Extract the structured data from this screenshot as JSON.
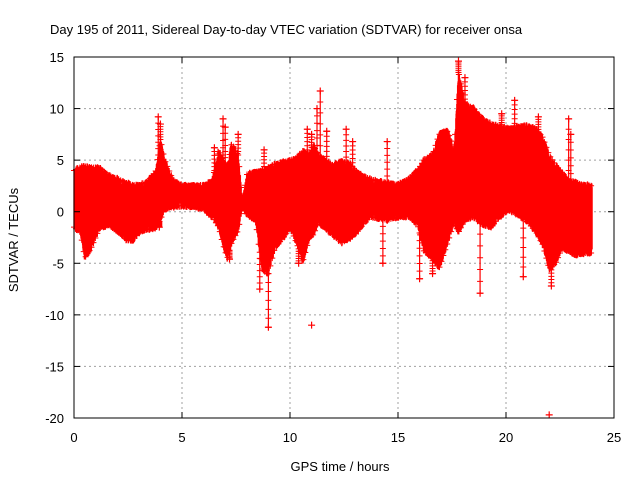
{
  "chart_data": {
    "type": "scatter",
    "title": "Day 195 of 2011, Sidereal Day-to-day VTEC variation (SDTVAR) for receiver onsa",
    "xlabel": "GPS time / hours",
    "ylabel": "SDTVAR / TECUs",
    "xlim": [
      0,
      25
    ],
    "ylim": [
      -20,
      15
    ],
    "xticks": [
      0,
      5,
      10,
      15,
      20,
      25
    ],
    "yticks": [
      -20,
      -15,
      -10,
      -5,
      0,
      5,
      10,
      15
    ],
    "xtick_labels": [
      "0",
      "5",
      "10",
      "15",
      "20",
      "25"
    ],
    "ytick_labels": [
      "-20",
      "-15",
      "-10",
      "-5",
      "0",
      "5",
      "10",
      "15"
    ],
    "grid": true,
    "marker": "+",
    "color": "#ff0000",
    "series": [
      {
        "name": "SDTVAR",
        "envelope": {
          "x": [
            0.0,
            0.3,
            0.5,
            0.8,
            1.2,
            1.6,
            2.0,
            2.4,
            2.7,
            3.0,
            3.4,
            3.8,
            4.0,
            4.2,
            4.6,
            5.0,
            5.5,
            6.0,
            6.4,
            6.7,
            6.9,
            7.1,
            7.3,
            7.6,
            7.8,
            8.0,
            8.4,
            8.7,
            9.0,
            9.3,
            9.7,
            10.0,
            10.3,
            10.6,
            10.9,
            11.1,
            11.3,
            11.6,
            12.0,
            12.4,
            12.8,
            13.1,
            13.4,
            13.7,
            14.1,
            14.5,
            15.0,
            15.5,
            15.9,
            16.2,
            16.6,
            16.9,
            17.3,
            17.6,
            17.8,
            18.1,
            18.5,
            18.9,
            19.3,
            19.7,
            20.1,
            20.6,
            21.0,
            21.4,
            21.7,
            22.0,
            22.3,
            22.6,
            22.9,
            23.2,
            23.6,
            24.0
          ],
          "upper": [
            4.0,
            4.3,
            4.4,
            4.3,
            4.2,
            3.5,
            3.2,
            2.8,
            2.6,
            2.5,
            2.9,
            4.0,
            7.0,
            5.0,
            3.0,
            2.5,
            2.5,
            2.5,
            3.0,
            6.0,
            4.8,
            4.5,
            6.6,
            5.5,
            1.0,
            3.6,
            3.8,
            4.0,
            4.2,
            4.6,
            4.8,
            5.0,
            5.2,
            5.8,
            5.5,
            6.4,
            5.5,
            5.0,
            4.5,
            4.9,
            4.6,
            3.8,
            3.4,
            3.2,
            2.9,
            2.8,
            2.6,
            3.2,
            4.0,
            5.0,
            5.5,
            7.5,
            7.8,
            6.0,
            13.5,
            10.5,
            10.0,
            9.0,
            8.5,
            8.3,
            8.0,
            8.2,
            8.3,
            8.0,
            7.2,
            5.5,
            4.5,
            3.8,
            3.0,
            2.8,
            2.6,
            2.5
          ],
          "lower": [
            -1.5,
            -2.0,
            -4.5,
            -3.5,
            -1.5,
            -1.3,
            -1.8,
            -2.7,
            -2.8,
            -2.0,
            -1.7,
            -1.5,
            -0.8,
            0.3,
            0.5,
            0.6,
            0.5,
            0.3,
            -0.5,
            -1.5,
            -3.2,
            -4.5,
            -3.0,
            -1.8,
            0.5,
            -0.2,
            -0.8,
            -5.5,
            -6.0,
            -3.5,
            -2.5,
            -1.5,
            -3.0,
            -4.8,
            -2.5,
            -2.2,
            -1.0,
            -1.5,
            -2.3,
            -3.0,
            -2.5,
            -2.0,
            -1.2,
            -0.5,
            -0.6,
            -0.8,
            -0.5,
            -0.5,
            -1.2,
            -3.8,
            -4.5,
            -5.5,
            -3.0,
            -1.0,
            -2.0,
            -0.8,
            -0.5,
            -1.2,
            -1.5,
            -0.5,
            0.2,
            -0.3,
            -1.0,
            -2.0,
            -3.2,
            -5.5,
            -5.0,
            -3.5,
            -3.8,
            -4.2,
            -4.0,
            -4.0
          ]
        },
        "spikes": [
          {
            "x": 3.9,
            "y": 9.2
          },
          {
            "x": 4.0,
            "y": 8.5
          },
          {
            "x": 3.95,
            "y": -1.5
          },
          {
            "x": 6.5,
            "y": 6.2
          },
          {
            "x": 6.9,
            "y": 9.0
          },
          {
            "x": 7.0,
            "y": 8.2
          },
          {
            "x": 7.2,
            "y": -4.6
          },
          {
            "x": 7.6,
            "y": 7.5
          },
          {
            "x": 8.6,
            "y": -7.5
          },
          {
            "x": 8.8,
            "y": 6.0
          },
          {
            "x": 9.0,
            "y": -11.2
          },
          {
            "x": 10.4,
            "y": -5.0
          },
          {
            "x": 10.8,
            "y": 8.0
          },
          {
            "x": 11.0,
            "y": 7.5
          },
          {
            "x": 11.0,
            "y": -11.0
          },
          {
            "x": 11.25,
            "y": 10.0
          },
          {
            "x": 11.4,
            "y": 11.7
          },
          {
            "x": 11.7,
            "y": 7.8
          },
          {
            "x": 12.6,
            "y": 8.0
          },
          {
            "x": 12.9,
            "y": 6.8
          },
          {
            "x": 14.3,
            "y": -5.0
          },
          {
            "x": 14.5,
            "y": 6.8
          },
          {
            "x": 16.0,
            "y": -6.5
          },
          {
            "x": 16.6,
            "y": -6.0
          },
          {
            "x": 17.8,
            "y": 14.6
          },
          {
            "x": 18.1,
            "y": 13.0
          },
          {
            "x": 18.8,
            "y": -7.9
          },
          {
            "x": 19.8,
            "y": 9.5
          },
          {
            "x": 20.4,
            "y": 10.8
          },
          {
            "x": 20.8,
            "y": -6.3
          },
          {
            "x": 21.5,
            "y": 9.2
          },
          {
            "x": 22.0,
            "y": -19.7
          },
          {
            "x": 22.1,
            "y": -7.2
          },
          {
            "x": 22.9,
            "y": 9.0
          },
          {
            "x": 23.0,
            "y": 7.5
          }
        ]
      }
    ]
  }
}
